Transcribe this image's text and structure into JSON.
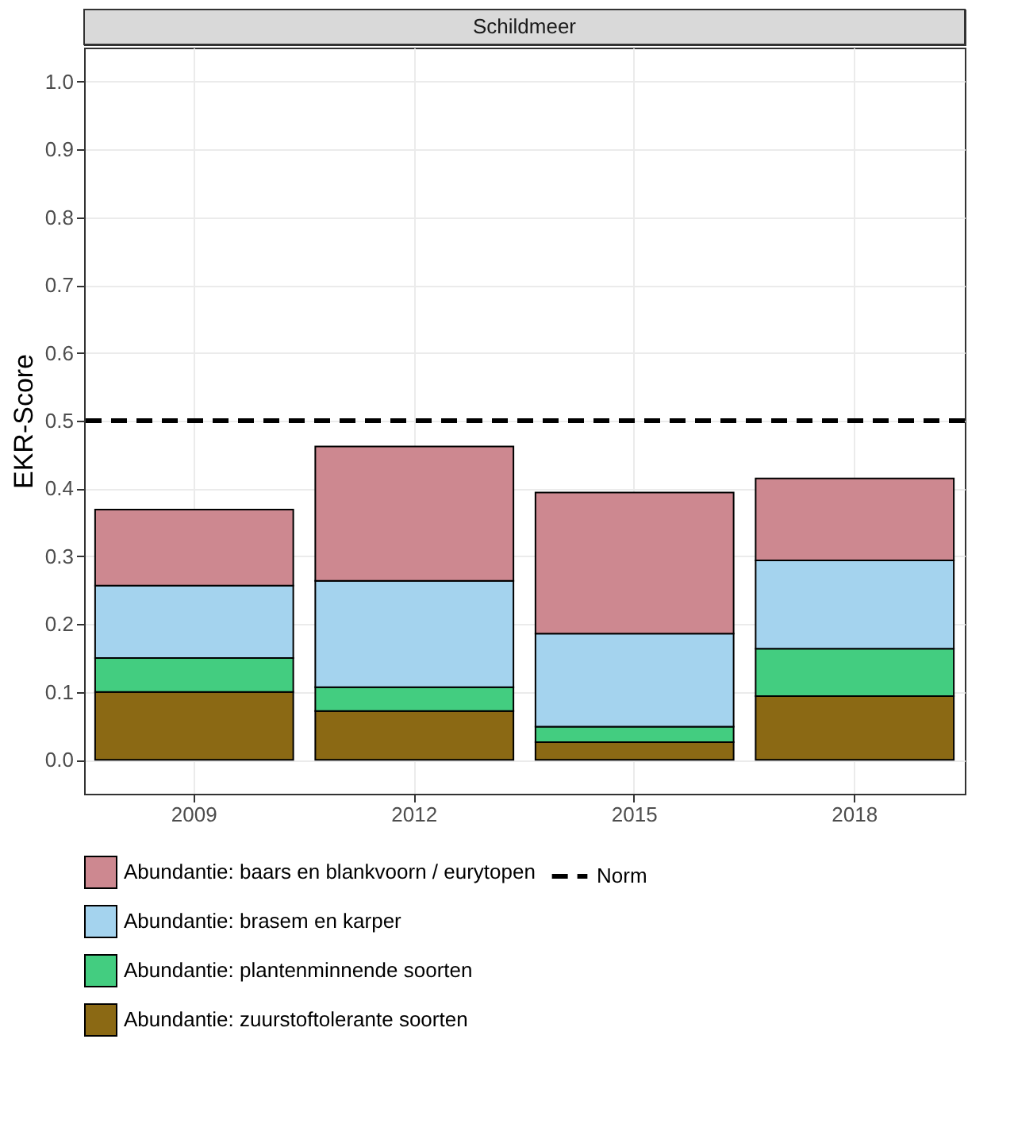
{
  "chart_data": {
    "type": "bar",
    "title": "Schildmeer",
    "ylabel": "EKR-Score",
    "categories": [
      "2009",
      "2012",
      "2015",
      "2018"
    ],
    "stacked": true,
    "series": [
      {
        "name": "Abundantie: zuurstoftolerante soorten",
        "color": "#8b6914",
        "values": [
          0.1,
          0.072,
          0.026,
          0.094
        ]
      },
      {
        "name": "Abundantie: plantenminnende soorten",
        "color": "#43cd80",
        "values": [
          0.05,
          0.035,
          0.023,
          0.07
        ]
      },
      {
        "name": "Abundantie: brasem en karper",
        "color": "#a4d3ee",
        "values": [
          0.107,
          0.157,
          0.137,
          0.13
        ]
      },
      {
        "name": "Abundantie: baars en blankvoorn / eurytopen",
        "color": "#cd8890",
        "values": [
          0.112,
          0.198,
          0.208,
          0.121
        ]
      }
    ],
    "ylim": [
      -0.05,
      1.05
    ],
    "yticks": [
      {
        "value": 0,
        "label": "0.0"
      },
      0.1,
      0.2,
      0.3,
      0.4,
      0.5,
      0.6,
      0.7,
      0.8,
      0.9,
      {
        "value": 1,
        "label": "1.0"
      }
    ],
    "ref_lines": [
      {
        "axis": "y",
        "value": 0.5,
        "label": "Norm",
        "color": "#000000",
        "line_style": "dashed"
      }
    ],
    "grid": true,
    "legend": "bottom"
  }
}
